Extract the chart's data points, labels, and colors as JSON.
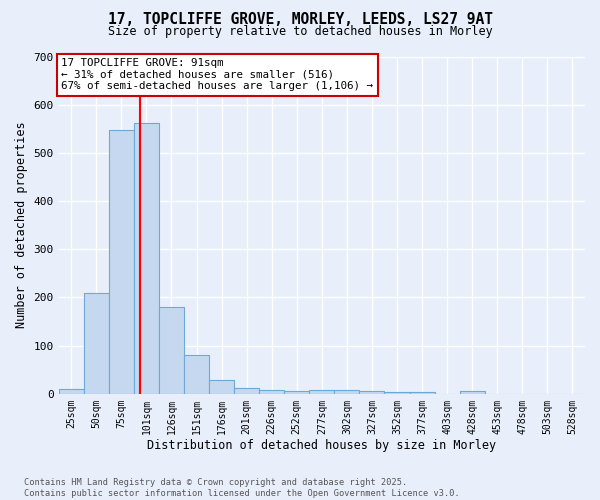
{
  "title_line1": "17, TOPCLIFFE GROVE, MORLEY, LEEDS, LS27 9AT",
  "title_line2": "Size of property relative to detached houses in Morley",
  "xlabel": "Distribution of detached houses by size in Morley",
  "ylabel": "Number of detached properties",
  "bin_labels": [
    "25sqm",
    "50sqm",
    "75sqm",
    "101sqm",
    "126sqm",
    "151sqm",
    "176sqm",
    "201sqm",
    "226sqm",
    "252sqm",
    "277sqm",
    "302sqm",
    "327sqm",
    "352sqm",
    "377sqm",
    "403sqm",
    "428sqm",
    "453sqm",
    "478sqm",
    "503sqm",
    "528sqm"
  ],
  "bar_heights": [
    10,
    210,
    548,
    563,
    180,
    80,
    28,
    12,
    8,
    5,
    8,
    8,
    5,
    3,
    3,
    0,
    5,
    0,
    0,
    0,
    0
  ],
  "bar_color": "#c5d8f0",
  "bar_edge_color": "#6aaad4",
  "background_color": "#e8eefa",
  "grid_color": "#ffffff",
  "ylim": [
    0,
    700
  ],
  "yticks": [
    0,
    100,
    200,
    300,
    400,
    500,
    600,
    700
  ],
  "red_line_x": 2.73,
  "annotation_text": "17 TOPCLIFFE GROVE: 91sqm\n← 31% of detached houses are smaller (516)\n67% of semi-detached houses are larger (1,106) →",
  "annotation_box_facecolor": "#ffffff",
  "annotation_box_edgecolor": "#cc0000",
  "footnote": "Contains HM Land Registry data © Crown copyright and database right 2025.\nContains public sector information licensed under the Open Government Licence v3.0."
}
